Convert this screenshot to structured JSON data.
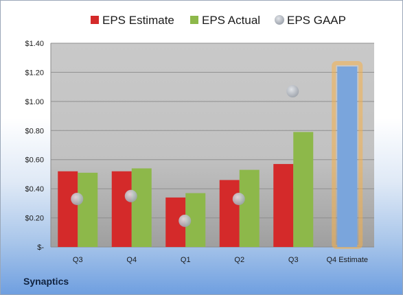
{
  "company": "Synaptics",
  "colors": {
    "estimate": "#d42a2a",
    "actual": "#8db84a",
    "gaap": "#b9bec6",
    "q4_estimate": "#7aa5dc",
    "highlight": "#f5b14a"
  },
  "chart_data": {
    "type": "bar",
    "categories": [
      "Q3",
      "Q4",
      "Q1",
      "Q2",
      "Q3",
      "Q4 Estimate"
    ],
    "series": [
      {
        "name": "EPS Estimate",
        "values": [
          0.52,
          0.52,
          0.34,
          0.46,
          0.57,
          null
        ]
      },
      {
        "name": "EPS Actual",
        "values": [
          0.51,
          0.54,
          0.37,
          0.53,
          0.79,
          1.24
        ]
      },
      {
        "name": "EPS GAAP",
        "values": [
          0.33,
          0.35,
          0.18,
          0.33,
          1.07,
          null
        ]
      }
    ],
    "ylim": [
      0,
      1.4
    ],
    "yticks": [
      {
        "value": 1.4,
        "label": "$1.40"
      },
      {
        "value": 1.2,
        "label": "$1.20"
      },
      {
        "value": 1.0,
        "label": "$1.00"
      },
      {
        "value": 0.8,
        "label": "$0.80"
      },
      {
        "value": 0.6,
        "label": "$0.60"
      },
      {
        "value": 0.4,
        "label": "$0.40"
      },
      {
        "value": 0.2,
        "label": "$0.20"
      },
      {
        "value": 0,
        "label": "$-"
      }
    ],
    "grid": true,
    "legend": "top",
    "highlighted_category": "Q4 Estimate"
  }
}
